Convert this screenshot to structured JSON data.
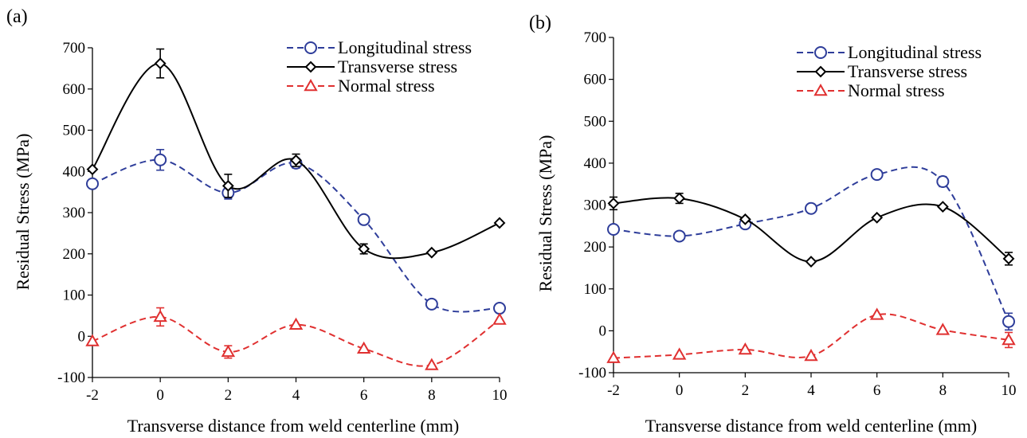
{
  "chart_data": [
    {
      "panel_label": "(a)",
      "type": "line",
      "xlabel": "Transverse distance from weld centerline (mm)",
      "ylabel": "Residual Stress (MPa)",
      "xlim": [
        -2,
        10
      ],
      "ylim": [
        -100,
        700
      ],
      "xticks": [
        -2,
        0,
        2,
        4,
        6,
        8,
        10
      ],
      "yticks": [
        -100,
        0,
        100,
        200,
        300,
        400,
        500,
        600,
        700
      ],
      "legend_position": "top-right",
      "grid": false,
      "series": [
        {
          "name": "Longitudinal stress",
          "color": "#2E3D9A",
          "dash": "dashed",
          "marker": "circle",
          "x": [
            -2,
            0,
            2,
            4,
            6,
            8,
            10
          ],
          "y": [
            370,
            428,
            348,
            420,
            283,
            78,
            68
          ],
          "err": [
            0,
            25,
            15,
            12,
            0,
            0,
            0
          ]
        },
        {
          "name": "Transverse stress",
          "color": "#000000",
          "dash": "solid",
          "marker": "diamond",
          "x": [
            -2,
            0,
            2,
            4,
            6,
            8,
            10
          ],
          "y": [
            405,
            662,
            365,
            427,
            212,
            203,
            275
          ],
          "err": [
            0,
            35,
            28,
            15,
            12,
            0,
            0
          ]
        },
        {
          "name": "Normal stress",
          "color": "#E03030",
          "dash": "dashed",
          "marker": "triangle",
          "x": [
            -2,
            0,
            2,
            4,
            6,
            8,
            10
          ],
          "y": [
            -12,
            47,
            -38,
            28,
            -30,
            -70,
            40
          ],
          "err": [
            0,
            22,
            15,
            0,
            0,
            0,
            0
          ]
        }
      ]
    },
    {
      "panel_label": "(b)",
      "type": "line",
      "xlabel": "Transverse distance from weld centerline (mm)",
      "ylabel": "Residual Stress (MPa)",
      "xlim": [
        -2,
        10
      ],
      "ylim": [
        -100,
        700
      ],
      "xticks": [
        -2,
        0,
        2,
        4,
        6,
        8,
        10
      ],
      "yticks": [
        -100,
        0,
        100,
        200,
        300,
        400,
        500,
        600,
        700
      ],
      "legend_position": "top-right",
      "grid": false,
      "series": [
        {
          "name": "Longitudinal stress",
          "color": "#2E3D9A",
          "dash": "dashed",
          "marker": "circle",
          "x": [
            -2,
            0,
            2,
            4,
            6,
            8,
            10
          ],
          "y": [
            242,
            226,
            255,
            292,
            373,
            356,
            22
          ],
          "err": [
            0,
            0,
            0,
            0,
            0,
            12,
            20
          ]
        },
        {
          "name": "Transverse stress",
          "color": "#000000",
          "dash": "solid",
          "marker": "diamond",
          "x": [
            -2,
            0,
            2,
            4,
            6,
            8,
            10
          ],
          "y": [
            304,
            316,
            266,
            165,
            270,
            296,
            172
          ],
          "err": [
            15,
            12,
            0,
            0,
            0,
            0,
            15
          ]
        },
        {
          "name": "Normal stress",
          "color": "#E03030",
          "dash": "dashed",
          "marker": "triangle",
          "x": [
            -2,
            0,
            2,
            4,
            6,
            8,
            10
          ],
          "y": [
            -65,
            -57,
            -45,
            -60,
            38,
            2,
            -22
          ],
          "err": [
            0,
            0,
            0,
            0,
            0,
            0,
            18
          ]
        }
      ]
    }
  ]
}
